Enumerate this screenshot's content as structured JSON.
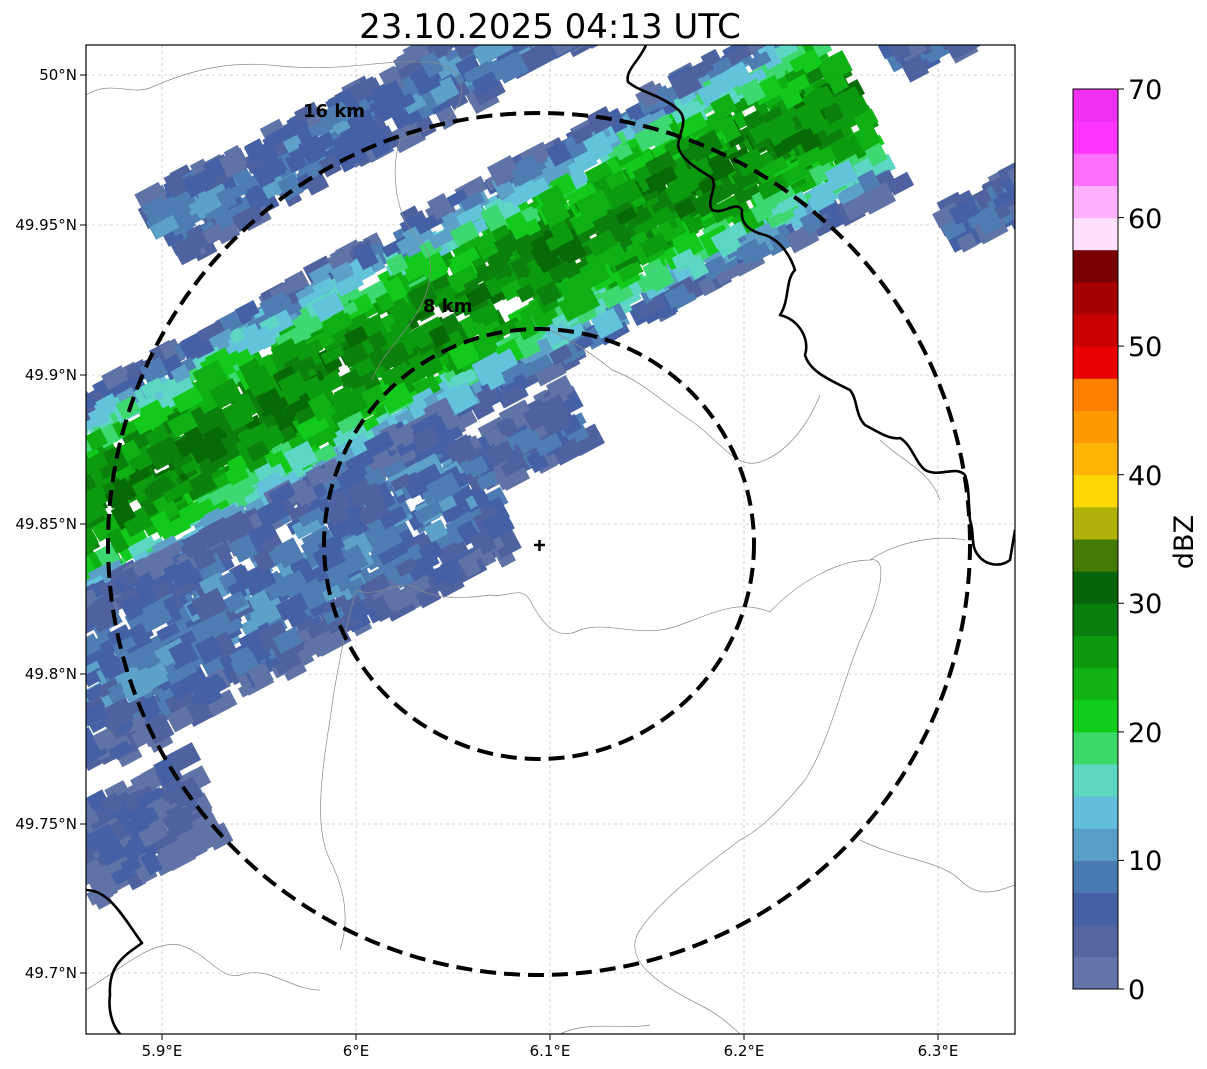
{
  "title": "23.10.2025 04:13 UTC",
  "map": {
    "x_ticks": [
      "5.9°E",
      "6°E",
      "6.1°E",
      "6.2°E",
      "6.3°E"
    ],
    "y_ticks": [
      "50°N",
      "49.95°N",
      "49.9°N",
      "49.85°N",
      "49.8°N",
      "49.75°N",
      "49.7°N"
    ],
    "range_rings": [
      {
        "label": "8 km",
        "radius_km": 8
      },
      {
        "label": "16 km",
        "radius_km": 16
      }
    ],
    "center_marker": "radar-site-cross-icon",
    "precip_colors": [
      "#5f73a6",
      "#4f62a0",
      "#4461a6",
      "#4d7db3",
      "#5da1c8",
      "#62c3db",
      "#5dd6c3",
      "#3dd870",
      "#12c91c",
      "#0fb014",
      "#0c9a0f",
      "#0c800d",
      "#076a07"
    ]
  },
  "colorbar": {
    "label": "dBZ",
    "ticks": [
      "0",
      "10",
      "20",
      "30",
      "40",
      "50",
      "60",
      "70"
    ],
    "colors": [
      "#6475aa",
      "#5465a0",
      "#4561a6",
      "#4a7ab2",
      "#599ec9",
      "#62bedb",
      "#5dd6c2",
      "#3cd96a",
      "#12cc1b",
      "#10b214",
      "#0c980f",
      "#0a7e0c",
      "#06640a",
      "#467a06",
      "#b0b20a",
      "#fcd703",
      "#ffb506",
      "#ff9a00",
      "#ff7f00",
      "#e80000",
      "#c80000",
      "#a80000",
      "#780000",
      "#ffe0ff",
      "#ffb0ff",
      "#ff70ff",
      "#ff35ff",
      "#f030f0"
    ]
  }
}
